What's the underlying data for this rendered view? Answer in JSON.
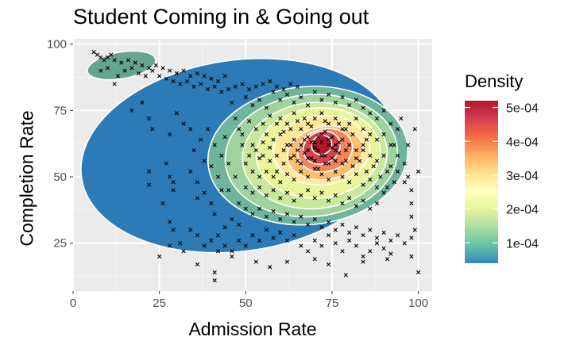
{
  "chart_data": {
    "type": "scatter",
    "title": "Student Coming in & Going out",
    "xlabel": "Admission Rate",
    "ylabel": "Completion Rate",
    "xlim": [
      0,
      104
    ],
    "ylim": [
      7,
      102
    ],
    "x_ticks": [
      0,
      25,
      50,
      75,
      100
    ],
    "y_ticks": [
      25,
      50,
      75,
      100
    ],
    "grid": true,
    "legend": {
      "title": "Density",
      "position": "right",
      "ticks": [
        {
          "value": 0.0001,
          "label": "1e-04"
        },
        {
          "value": 0.0002,
          "label": "2e-04"
        },
        {
          "value": 0.0003,
          "label": "3e-04"
        },
        {
          "value": 0.0004,
          "label": "4e-04"
        },
        {
          "value": 0.0005,
          "label": "5e-04"
        }
      ],
      "range": [
        4e-05,
        0.00052
      ],
      "colors": [
        "#3288bd",
        "#66c2a5",
        "#abdda4",
        "#e6f598",
        "#ffffbf",
        "#fee08b",
        "#fdae61",
        "#f46d43",
        "#d53e4f",
        "#b2182b"
      ]
    },
    "density_levels": [
      {
        "cx": 48,
        "cy": 58,
        "rx": 46,
        "ry": 36,
        "rot": -8,
        "color": "#2c7bb6"
      },
      {
        "cx": 14,
        "cy": 92,
        "rx": 10,
        "ry": 5,
        "rot": -10,
        "color": "#66a58f"
      },
      {
        "cx": 68,
        "cy": 58,
        "rx": 29,
        "ry": 26,
        "rot": -5,
        "color": "#6fb59b"
      },
      {
        "cx": 69,
        "cy": 58,
        "rx": 25,
        "ry": 23,
        "rot": -5,
        "color": "#9fd29e"
      },
      {
        "cx": 70,
        "cy": 58,
        "rx": 21,
        "ry": 20,
        "rot": -5,
        "color": "#c8e89a"
      },
      {
        "cx": 71,
        "cy": 59,
        "rx": 18,
        "ry": 17,
        "rot": -5,
        "color": "#e9f59b"
      },
      {
        "cx": 72,
        "cy": 60,
        "rx": 14,
        "ry": 13,
        "rot": -5,
        "color": "#fee99a"
      },
      {
        "cx": 73,
        "cy": 59,
        "rx": 11,
        "ry": 10,
        "rot": -10,
        "color": "#fdbf6f"
      },
      {
        "cx": 73,
        "cy": 60,
        "rx": 8,
        "ry": 8,
        "rot": -15,
        "color": "#f4845a"
      },
      {
        "cx": 72,
        "cy": 61,
        "rx": 5.5,
        "ry": 6,
        "rot": -25,
        "color": "#d7434a"
      },
      {
        "cx": 72,
        "cy": 62,
        "rx": 3,
        "ry": 3.5,
        "rot": -30,
        "color": "#b2182b"
      }
    ],
    "points": [
      [
        6,
        97
      ],
      [
        7,
        96
      ],
      [
        8,
        95
      ],
      [
        9,
        94
      ],
      [
        10,
        95
      ],
      [
        11,
        96
      ],
      [
        12,
        94
      ],
      [
        14,
        93
      ],
      [
        16,
        94
      ],
      [
        18,
        93
      ],
      [
        20,
        92
      ],
      [
        22,
        91
      ],
      [
        24,
        92
      ],
      [
        26,
        91
      ],
      [
        28,
        90
      ],
      [
        30,
        89
      ],
      [
        32,
        90
      ],
      [
        34,
        88
      ],
      [
        36,
        89
      ],
      [
        38,
        88
      ],
      [
        40,
        87
      ],
      [
        42,
        86
      ],
      [
        44,
        88
      ],
      [
        13,
        88
      ],
      [
        15,
        90
      ],
      [
        17,
        91
      ],
      [
        19,
        89
      ],
      [
        21,
        88
      ],
      [
        23,
        90
      ],
      [
        25,
        88
      ],
      [
        27,
        87
      ],
      [
        29,
        86
      ],
      [
        31,
        85
      ],
      [
        33,
        86
      ],
      [
        35,
        84
      ],
      [
        37,
        85
      ],
      [
        39,
        83
      ],
      [
        41,
        84
      ],
      [
        43,
        82
      ],
      [
        45,
        83
      ],
      [
        47,
        84
      ],
      [
        49,
        85
      ],
      [
        51,
        83
      ],
      [
        53,
        84
      ],
      [
        55,
        85
      ],
      [
        57,
        86
      ],
      [
        59,
        84
      ],
      [
        61,
        83
      ],
      [
        63,
        85
      ],
      [
        65,
        84
      ],
      [
        12,
        85
      ],
      [
        46,
        78
      ],
      [
        47,
        72
      ],
      [
        48,
        68
      ],
      [
        44,
        65
      ],
      [
        49,
        62
      ],
      [
        50,
        80
      ],
      [
        52,
        77
      ],
      [
        54,
        79
      ],
      [
        56,
        76
      ],
      [
        58,
        82
      ],
      [
        60,
        79
      ],
      [
        62,
        81
      ],
      [
        64,
        78
      ],
      [
        66,
        80
      ],
      [
        68,
        77
      ],
      [
        70,
        82
      ],
      [
        72,
        79
      ],
      [
        74,
        81
      ],
      [
        76,
        78
      ],
      [
        78,
        80
      ],
      [
        80,
        77
      ],
      [
        82,
        79
      ],
      [
        84,
        76
      ],
      [
        86,
        74
      ],
      [
        88,
        72
      ],
      [
        90,
        75
      ],
      [
        92,
        70
      ],
      [
        94,
        68
      ],
      [
        95,
        72
      ],
      [
        60,
        72
      ],
      [
        62,
        70
      ],
      [
        64,
        74
      ],
      [
        66,
        68
      ],
      [
        68,
        70
      ],
      [
        70,
        72
      ],
      [
        72,
        74
      ],
      [
        74,
        70
      ],
      [
        76,
        72
      ],
      [
        78,
        68
      ],
      [
        80,
        70
      ],
      [
        82,
        72
      ],
      [
        84,
        68
      ],
      [
        86,
        66
      ],
      [
        88,
        64
      ],
      [
        90,
        66
      ],
      [
        92,
        62
      ],
      [
        94,
        58
      ],
      [
        96,
        55
      ],
      [
        97,
        50
      ],
      [
        98,
        45
      ],
      [
        56,
        66
      ],
      [
        58,
        64
      ],
      [
        60,
        66
      ],
      [
        62,
        62
      ],
      [
        64,
        64
      ],
      [
        66,
        62
      ],
      [
        68,
        65
      ],
      [
        70,
        63
      ],
      [
        72,
        66
      ],
      [
        74,
        64
      ],
      [
        76,
        62
      ],
      [
        78,
        64
      ],
      [
        80,
        62
      ],
      [
        82,
        60
      ],
      [
        84,
        62
      ],
      [
        86,
        58
      ],
      [
        88,
        56
      ],
      [
        90,
        58
      ],
      [
        92,
        54
      ],
      [
        94,
        52
      ],
      [
        55,
        58
      ],
      [
        57,
        56
      ],
      [
        59,
        58
      ],
      [
        61,
        55
      ],
      [
        63,
        57
      ],
      [
        65,
        56
      ],
      [
        67,
        59
      ],
      [
        69,
        57
      ],
      [
        71,
        60
      ],
      [
        73,
        58
      ],
      [
        75,
        57
      ],
      [
        77,
        59
      ],
      [
        79,
        56
      ],
      [
        81,
        54
      ],
      [
        83,
        56
      ],
      [
        85,
        52
      ],
      [
        87,
        54
      ],
      [
        89,
        50
      ],
      [
        91,
        52
      ],
      [
        93,
        48
      ],
      [
        52,
        52
      ],
      [
        54,
        50
      ],
      [
        56,
        52
      ],
      [
        58,
        50
      ],
      [
        60,
        48
      ],
      [
        62,
        51
      ],
      [
        64,
        49
      ],
      [
        66,
        52
      ],
      [
        68,
        50
      ],
      [
        70,
        53
      ],
      [
        72,
        51
      ],
      [
        74,
        49
      ],
      [
        76,
        52
      ],
      [
        78,
        50
      ],
      [
        80,
        48
      ],
      [
        82,
        51
      ],
      [
        84,
        47
      ],
      [
        86,
        49
      ],
      [
        88,
        46
      ],
      [
        90,
        44
      ],
      [
        50,
        46
      ],
      [
        52,
        44
      ],
      [
        54,
        46
      ],
      [
        56,
        43
      ],
      [
        58,
        45
      ],
      [
        60,
        42
      ],
      [
        62,
        44
      ],
      [
        64,
        41
      ],
      [
        66,
        43
      ],
      [
        68,
        45
      ],
      [
        70,
        42
      ],
      [
        72,
        44
      ],
      [
        74,
        41
      ],
      [
        76,
        43
      ],
      [
        78,
        40
      ],
      [
        80,
        42
      ],
      [
        82,
        39
      ],
      [
        84,
        41
      ],
      [
        86,
        38
      ],
      [
        88,
        40
      ],
      [
        48,
        40
      ],
      [
        50,
        38
      ],
      [
        52,
        36
      ],
      [
        54,
        38
      ],
      [
        56,
        35
      ],
      [
        58,
        37
      ],
      [
        60,
        34
      ],
      [
        62,
        36
      ],
      [
        64,
        33
      ],
      [
        66,
        35
      ],
      [
        68,
        32
      ],
      [
        70,
        34
      ],
      [
        72,
        31
      ],
      [
        74,
        33
      ],
      [
        76,
        30
      ],
      [
        78,
        32
      ],
      [
        80,
        29
      ],
      [
        82,
        31
      ],
      [
        84,
        28
      ],
      [
        86,
        30
      ],
      [
        88,
        27
      ],
      [
        90,
        29
      ],
      [
        92,
        26
      ],
      [
        94,
        28
      ],
      [
        96,
        25
      ],
      [
        98,
        27
      ],
      [
        99,
        30
      ],
      [
        46,
        34
      ],
      [
        44,
        31
      ],
      [
        42,
        28
      ],
      [
        40,
        26
      ],
      [
        38,
        24
      ],
      [
        36,
        28
      ],
      [
        34,
        30
      ],
      [
        42,
        22
      ],
      [
        44,
        24
      ],
      [
        46,
        22
      ],
      [
        48,
        26
      ],
      [
        50,
        24
      ],
      [
        52,
        28
      ],
      [
        54,
        26
      ],
      [
        56,
        30
      ],
      [
        58,
        27
      ],
      [
        60,
        29
      ],
      [
        62,
        26
      ],
      [
        64,
        28
      ],
      [
        66,
        24
      ],
      [
        68,
        22
      ],
      [
        70,
        26
      ],
      [
        72,
        24
      ],
      [
        74,
        28
      ],
      [
        76,
        25
      ],
      [
        78,
        22
      ],
      [
        80,
        26
      ],
      [
        82,
        24
      ],
      [
        84,
        20
      ],
      [
        86,
        22
      ],
      [
        88,
        25
      ],
      [
        90,
        23
      ],
      [
        92,
        21
      ],
      [
        48,
        32
      ],
      [
        40,
        40
      ],
      [
        38,
        44
      ],
      [
        36,
        48
      ],
      [
        34,
        52
      ],
      [
        35,
        60
      ],
      [
        37,
        64
      ],
      [
        39,
        68
      ],
      [
        41,
        62
      ],
      [
        43,
        58
      ],
      [
        45,
        55
      ],
      [
        42,
        50
      ],
      [
        40,
        54
      ],
      [
        38,
        56
      ],
      [
        36,
        42
      ],
      [
        45,
        45
      ],
      [
        47,
        50
      ],
      [
        43,
        45
      ],
      [
        41,
        36
      ],
      [
        22,
        52
      ],
      [
        22,
        47
      ],
      [
        27,
        55
      ],
      [
        28,
        50
      ],
      [
        29,
        48
      ],
      [
        29,
        45
      ],
      [
        26,
        40
      ],
      [
        28,
        33
      ],
      [
        29,
        30
      ],
      [
        28,
        24
      ],
      [
        25,
        20
      ],
      [
        31,
        25
      ],
      [
        32,
        22
      ],
      [
        36,
        17
      ],
      [
        41,
        11
      ],
      [
        41,
        14
      ],
      [
        46,
        20
      ],
      [
        53,
        18
      ],
      [
        57,
        16
      ],
      [
        62,
        18
      ],
      [
        70,
        19
      ],
      [
        74,
        17
      ],
      [
        79,
        13
      ],
      [
        84,
        18
      ],
      [
        91,
        19
      ],
      [
        98,
        20
      ],
      [
        100,
        14
      ],
      [
        17,
        75
      ],
      [
        20,
        78
      ],
      [
        22,
        72
      ],
      [
        23,
        68
      ],
      [
        28,
        66
      ],
      [
        30,
        74
      ],
      [
        32,
        70
      ],
      [
        34,
        68
      ],
      [
        8,
        90
      ],
      [
        10,
        91
      ],
      [
        100,
        52
      ],
      [
        98,
        40
      ],
      [
        97,
        62
      ],
      [
        99,
        68
      ],
      [
        98,
        35
      ],
      [
        96,
        48
      ],
      [
        93,
        62
      ],
      [
        91,
        46
      ],
      [
        66,
        55
      ],
      [
        68,
        60
      ],
      [
        70,
        56
      ],
      [
        72,
        58
      ],
      [
        74,
        55
      ],
      [
        76,
        60
      ],
      [
        78,
        55
      ],
      [
        69,
        63
      ],
      [
        71,
        65
      ],
      [
        73,
        67
      ],
      [
        75,
        65
      ],
      [
        77,
        63
      ],
      [
        65,
        60
      ],
      [
        67,
        64
      ],
      [
        74,
        62
      ],
      [
        70,
        61
      ],
      [
        72,
        63
      ],
      [
        75,
        61
      ],
      [
        68,
        57
      ],
      [
        73,
        55
      ],
      [
        71,
        53
      ],
      [
        76,
        56
      ],
      [
        79,
        60
      ],
      [
        64,
        58
      ],
      [
        63,
        62
      ],
      [
        61,
        60
      ],
      [
        59,
        52
      ],
      [
        57,
        61
      ],
      [
        82,
        57
      ],
      [
        84,
        60
      ],
      [
        85,
        64
      ],
      [
        81,
        66
      ],
      [
        79,
        68
      ],
      [
        77,
        70
      ],
      [
        73,
        71
      ],
      [
        69,
        69
      ],
      [
        67,
        72
      ],
      [
        65,
        71
      ],
      [
        63,
        68
      ],
      [
        61,
        67
      ],
      [
        59,
        70
      ],
      [
        57,
        73
      ],
      [
        55,
        70
      ],
      [
        53,
        68
      ],
      [
        51,
        71
      ],
      [
        49,
        66
      ],
      [
        53,
        60
      ],
      [
        55,
        63
      ],
      [
        51,
        58
      ],
      [
        50,
        55
      ],
      [
        52,
        62
      ],
      [
        54,
        57
      ]
    ]
  }
}
